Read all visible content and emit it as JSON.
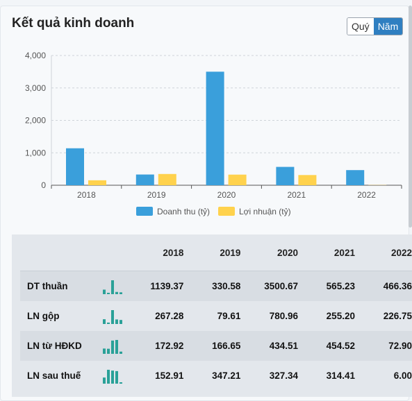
{
  "header": {
    "title": "Kết quả kinh doanh"
  },
  "toggle": {
    "quarter": "Quý",
    "year": "Năm"
  },
  "chart_data": {
    "type": "bar",
    "categories": [
      "2018",
      "2019",
      "2020",
      "2021",
      "2022"
    ],
    "series": [
      {
        "name": "Doanh thu (tỷ)",
        "color": "#3a9fdb",
        "values": [
          1139.37,
          330.58,
          3500.67,
          565.23,
          466.36
        ]
      },
      {
        "name": "Lợi nhuận (tỷ)",
        "color": "#ffd24d",
        "values": [
          152.91,
          347.21,
          327.34,
          314.41,
          6.0
        ]
      }
    ],
    "yticks": [
      "0",
      "1,000",
      "2,000",
      "3,000",
      "4,000"
    ],
    "ylim": [
      0,
      4000
    ],
    "grid": true,
    "legend": "bottom"
  },
  "table": {
    "columns": [
      "2018",
      "2019",
      "2020",
      "2021",
      "2022"
    ],
    "rows": [
      {
        "label": "DT thuần",
        "values": [
          "1139.37",
          "330.58",
          "3500.67",
          "565.23",
          "466.36"
        ],
        "raw": [
          1139.37,
          330.58,
          3500.67,
          565.23,
          466.36
        ]
      },
      {
        "label": "LN gộp",
        "values": [
          "267.28",
          "79.61",
          "780.96",
          "255.20",
          "226.75"
        ],
        "raw": [
          267.28,
          79.61,
          780.96,
          255.2,
          226.75
        ]
      },
      {
        "label": "LN từ HĐKD",
        "values": [
          "172.92",
          "166.65",
          "434.51",
          "454.52",
          "72.90"
        ],
        "raw": [
          172.92,
          166.65,
          434.51,
          454.52,
          72.9
        ]
      },
      {
        "label": "LN sau thuế",
        "values": [
          "152.91",
          "347.21",
          "327.34",
          "314.41",
          "6.00"
        ],
        "raw": [
          152.91,
          347.21,
          327.34,
          314.41,
          6.0
        ]
      }
    ],
    "spark_color": "#2aa198"
  }
}
